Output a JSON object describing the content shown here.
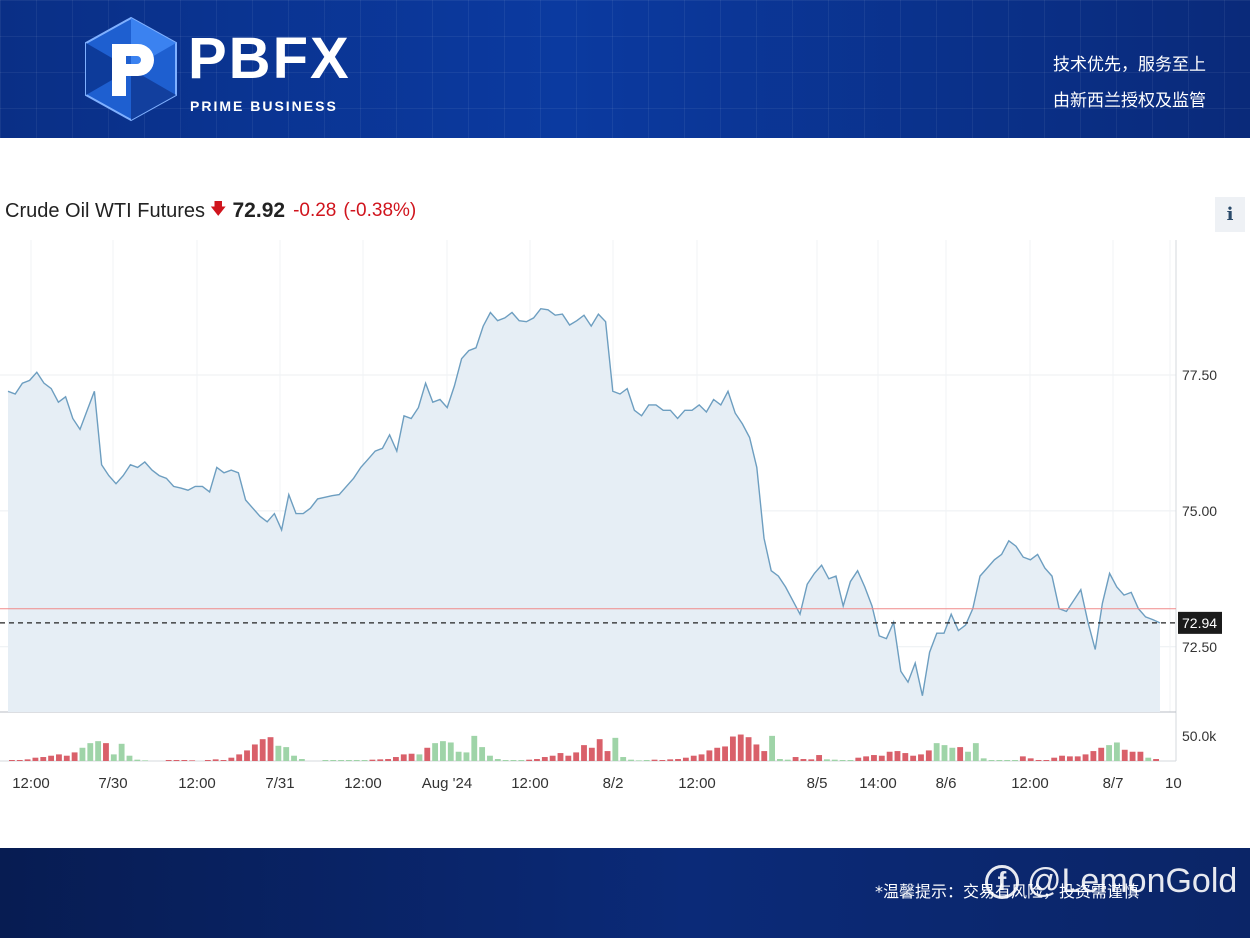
{
  "header": {
    "logo_text": "PBFX",
    "logo_sub": "PRIME BUSINESS",
    "slogan_1": "技术优先，服务至上",
    "slogan_2": "由新西兰授权及监管"
  },
  "quote": {
    "name": "Crude Oil WTI Futures",
    "price": "72.92",
    "change": "-0.28",
    "change_pct": "(-0.38%)",
    "direction_icon": "arrow-down-icon",
    "info_label": "i"
  },
  "footer": {
    "note": "*温馨提示：交易有风险，投资需谨慎",
    "watermark": "@LemonGold",
    "watermark_icon": "facebook-icon"
  },
  "colors": {
    "down": "#d0141d",
    "line": "#6d9ec0",
    "area": "#e6eef5",
    "vol_up": "#9fd4a8",
    "vol_down": "#d9606a",
    "ref_line": "#f08a8a"
  },
  "chart_data": {
    "type": "area",
    "title": "Crude Oil WTI Futures",
    "y_ticks": [
      "77.50",
      "75.00",
      "72.50"
    ],
    "ylim": [
      71.3,
      79.8
    ],
    "x_ticks": [
      "12:00",
      "7/30",
      "12:00",
      "7/31",
      "12:00",
      "Aug '24",
      "12:00",
      "8/2",
      "12:00",
      "8/5",
      "14:00",
      "8/6",
      "12:00",
      "8/7",
      "10"
    ],
    "last_price_label": "72.94",
    "last_price": 72.94,
    "prev_close_line": 73.2,
    "volume_tick_label": "50.0k",
    "volume_max": 65000,
    "price_series": [
      77.2,
      77.15,
      77.35,
      77.4,
      77.55,
      77.35,
      77.25,
      77.0,
      77.1,
      76.7,
      76.5,
      76.85,
      77.2,
      75.85,
      75.65,
      75.5,
      75.65,
      75.85,
      75.8,
      75.9,
      75.75,
      75.65,
      75.6,
      75.45,
      75.42,
      75.38,
      75.45,
      75.45,
      75.35,
      75.8,
      75.7,
      75.75,
      75.7,
      75.2,
      75.05,
      74.9,
      74.8,
      74.95,
      74.65,
      75.3,
      74.95,
      74.95,
      75.05,
      75.22,
      75.25,
      75.28,
      75.3,
      75.45,
      75.6,
      75.8,
      75.95,
      76.1,
      76.15,
      76.4,
      76.1,
      76.75,
      76.7,
      76.9,
      77.35,
      77.0,
      77.05,
      76.9,
      77.3,
      77.8,
      77.95,
      78.0,
      78.4,
      78.65,
      78.5,
      78.55,
      78.65,
      78.5,
      78.48,
      78.55,
      78.72,
      78.7,
      78.6,
      78.62,
      78.42,
      78.5,
      78.6,
      78.4,
      78.62,
      78.48,
      77.2,
      77.15,
      77.25,
      76.85,
      76.75,
      76.95,
      76.95,
      76.85,
      76.85,
      76.7,
      76.85,
      76.85,
      76.95,
      76.82,
      77.05,
      76.95,
      77.2,
      76.8,
      76.6,
      76.35,
      75.8,
      74.5,
      73.9,
      73.8,
      73.6,
      73.35,
      73.1,
      73.65,
      73.85,
      74.0,
      73.75,
      73.8,
      73.25,
      73.7,
      73.9,
      73.6,
      73.25,
      72.7,
      72.65,
      72.95,
      72.05,
      71.85,
      72.2,
      71.6,
      72.4,
      72.75,
      72.75,
      73.1,
      72.8,
      72.9,
      73.2,
      73.8,
      73.95,
      74.1,
      74.2,
      74.45,
      74.35,
      74.15,
      74.1,
      74.2,
      73.95,
      73.8,
      73.2,
      73.15,
      73.35,
      73.55,
      72.95,
      72.45,
      73.3,
      73.85,
      73.6,
      73.45,
      73.5,
      73.2,
      73.05,
      73.0,
      72.94
    ],
    "volume_series": [
      {
        "v": 1500,
        "up": false
      },
      {
        "v": 1500,
        "up": false
      },
      {
        "v": 2500,
        "up": false
      },
      {
        "v": 5000,
        "up": false
      },
      {
        "v": 6000,
        "up": false
      },
      {
        "v": 8000,
        "up": false
      },
      {
        "v": 10000,
        "up": false
      },
      {
        "v": 8000,
        "up": false
      },
      {
        "v": 13000,
        "up": false
      },
      {
        "v": 20000,
        "up": true
      },
      {
        "v": 27000,
        "up": true
      },
      {
        "v": 30000,
        "up": true
      },
      {
        "v": 27000,
        "up": false
      },
      {
        "v": 10000,
        "up": true
      },
      {
        "v": 26000,
        "up": true
      },
      {
        "v": 8000,
        "up": true
      },
      {
        "v": 2000,
        "up": true
      },
      {
        "v": 1000,
        "up": true
      },
      {
        "v": 0,
        "up": true
      },
      {
        "v": 0,
        "up": true
      },
      {
        "v": 1500,
        "up": false
      },
      {
        "v": 1500,
        "up": false
      },
      {
        "v": 1500,
        "up": false
      },
      {
        "v": 1000,
        "up": false
      },
      {
        "v": 0,
        "up": true
      },
      {
        "v": 1500,
        "up": false
      },
      {
        "v": 2500,
        "up": false
      },
      {
        "v": 1500,
        "up": false
      },
      {
        "v": 5000,
        "up": false
      },
      {
        "v": 10000,
        "up": false
      },
      {
        "v": 16000,
        "up": false
      },
      {
        "v": 25000,
        "up": false
      },
      {
        "v": 33000,
        "up": false
      },
      {
        "v": 36000,
        "up": false
      },
      {
        "v": 23000,
        "up": true
      },
      {
        "v": 21000,
        "up": true
      },
      {
        "v": 8000,
        "up": true
      },
      {
        "v": 3000,
        "up": true
      },
      {
        "v": 0,
        "up": true
      },
      {
        "v": 0,
        "up": true
      },
      {
        "v": 1500,
        "up": true
      },
      {
        "v": 1500,
        "up": true
      },
      {
        "v": 1500,
        "up": true
      },
      {
        "v": 1500,
        "up": true
      },
      {
        "v": 1500,
        "up": true
      },
      {
        "v": 1500,
        "up": true
      },
      {
        "v": 2000,
        "up": false
      },
      {
        "v": 2500,
        "up": false
      },
      {
        "v": 3000,
        "up": false
      },
      {
        "v": 6000,
        "up": false
      },
      {
        "v": 10000,
        "up": false
      },
      {
        "v": 11000,
        "up": false
      },
      {
        "v": 10000,
        "up": true
      },
      {
        "v": 20000,
        "up": false
      },
      {
        "v": 27000,
        "up": true
      },
      {
        "v": 30000,
        "up": true
      },
      {
        "v": 28000,
        "up": true
      },
      {
        "v": 14000,
        "up": true
      },
      {
        "v": 13000,
        "up": true
      },
      {
        "v": 38000,
        "up": true
      },
      {
        "v": 21000,
        "up": true
      },
      {
        "v": 8000,
        "up": true
      },
      {
        "v": 3000,
        "up": true
      },
      {
        "v": 1500,
        "up": true
      },
      {
        "v": 1500,
        "up": true
      },
      {
        "v": 1500,
        "up": true
      },
      {
        "v": 2000,
        "up": false
      },
      {
        "v": 3000,
        "up": false
      },
      {
        "v": 6000,
        "up": false
      },
      {
        "v": 8000,
        "up": false
      },
      {
        "v": 12000,
        "up": false
      },
      {
        "v": 8000,
        "up": false
      },
      {
        "v": 13000,
        "up": false
      },
      {
        "v": 24000,
        "up": false
      },
      {
        "v": 20000,
        "up": false
      },
      {
        "v": 33000,
        "up": false
      },
      {
        "v": 15000,
        "up": false
      },
      {
        "v": 35000,
        "up": true
      },
      {
        "v": 6000,
        "up": true
      },
      {
        "v": 2000,
        "up": true
      },
      {
        "v": 1000,
        "up": true
      },
      {
        "v": 1500,
        "up": true
      },
      {
        "v": 2000,
        "up": false
      },
      {
        "v": 1500,
        "up": false
      },
      {
        "v": 2500,
        "up": false
      },
      {
        "v": 3000,
        "up": false
      },
      {
        "v": 5000,
        "up": false
      },
      {
        "v": 8000,
        "up": false
      },
      {
        "v": 10000,
        "up": false
      },
      {
        "v": 16000,
        "up": false
      },
      {
        "v": 20000,
        "up": false
      },
      {
        "v": 22000,
        "up": false
      },
      {
        "v": 37000,
        "up": false
      },
      {
        "v": 40000,
        "up": false
      },
      {
        "v": 36000,
        "up": false
      },
      {
        "v": 25000,
        "up": false
      },
      {
        "v": 15000,
        "up": false
      },
      {
        "v": 38000,
        "up": true
      },
      {
        "v": 3000,
        "up": true
      },
      {
        "v": 2000,
        "up": true
      },
      {
        "v": 6000,
        "up": false
      },
      {
        "v": 3000,
        "up": false
      },
      {
        "v": 2500,
        "up": false
      },
      {
        "v": 9000,
        "up": false
      },
      {
        "v": 2500,
        "up": true
      },
      {
        "v": 2000,
        "up": true
      },
      {
        "v": 1500,
        "up": true
      },
      {
        "v": 1500,
        "up": true
      },
      {
        "v": 5000,
        "up": false
      },
      {
        "v": 7000,
        "up": false
      },
      {
        "v": 9000,
        "up": false
      },
      {
        "v": 8000,
        "up": false
      },
      {
        "v": 14000,
        "up": false
      },
      {
        "v": 15000,
        "up": false
      },
      {
        "v": 12000,
        "up": false
      },
      {
        "v": 8000,
        "up": false
      },
      {
        "v": 10000,
        "up": false
      },
      {
        "v": 16000,
        "up": false
      },
      {
        "v": 27000,
        "up": true
      },
      {
        "v": 24000,
        "up": true
      },
      {
        "v": 20000,
        "up": true
      },
      {
        "v": 21000,
        "up": false
      },
      {
        "v": 14000,
        "up": true
      },
      {
        "v": 27000,
        "up": true
      },
      {
        "v": 4000,
        "up": true
      },
      {
        "v": 1500,
        "up": true
      },
      {
        "v": 1500,
        "up": true
      },
      {
        "v": 1500,
        "up": true
      },
      {
        "v": 1500,
        "up": true
      },
      {
        "v": 7000,
        "up": false
      },
      {
        "v": 4000,
        "up": false
      },
      {
        "v": 1500,
        "up": false
      },
      {
        "v": 1500,
        "up": false
      },
      {
        "v": 5000,
        "up": false
      },
      {
        "v": 8000,
        "up": false
      },
      {
        "v": 7000,
        "up": false
      },
      {
        "v": 7000,
        "up": false
      },
      {
        "v": 10000,
        "up": false
      },
      {
        "v": 15000,
        "up": false
      },
      {
        "v": 20000,
        "up": false
      },
      {
        "v": 24000,
        "up": true
      },
      {
        "v": 28000,
        "up": true
      },
      {
        "v": 17000,
        "up": false
      },
      {
        "v": 14000,
        "up": false
      },
      {
        "v": 14000,
        "up": false
      },
      {
        "v": 5000,
        "up": true
      },
      {
        "v": 3000,
        "up": false
      }
    ]
  }
}
